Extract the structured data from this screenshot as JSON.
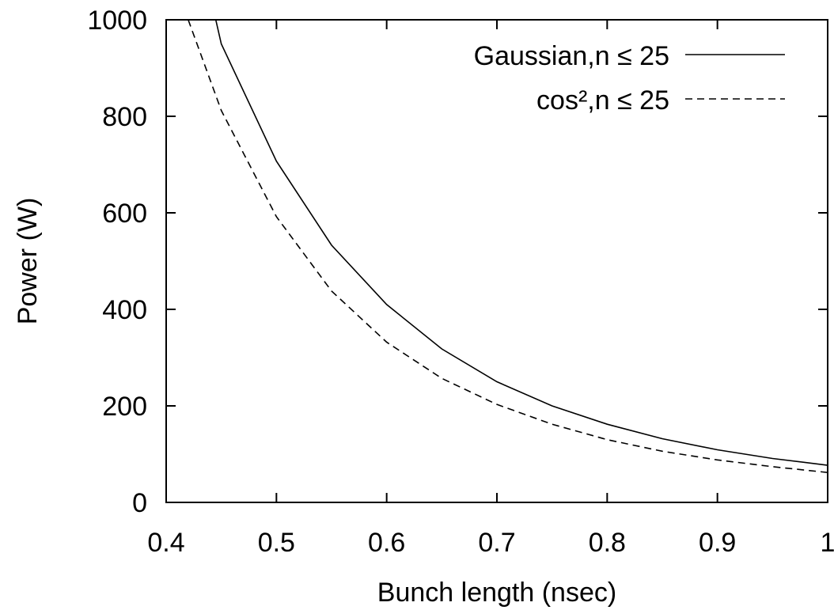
{
  "chart_data": {
    "type": "line",
    "title": "",
    "xlabel": "Bunch length (nsec)",
    "ylabel": "Power (W)",
    "xlim": [
      0.4,
      1.0
    ],
    "ylim": [
      0,
      1000
    ],
    "xticks": [
      "0.4",
      "0.5",
      "0.6",
      "0.7",
      "0.8",
      "0.9",
      "1"
    ],
    "yticks": [
      "0",
      "200",
      "400",
      "600",
      "800",
      "1000"
    ],
    "grid": false,
    "legend_position": "top-right",
    "series": [
      {
        "name": "Gaussian,n ≤ 25",
        "dash": "solid",
        "color": "#000000",
        "x": [
          0.44,
          0.45,
          0.5,
          0.55,
          0.6,
          0.65,
          0.7,
          0.75,
          0.8,
          0.85,
          0.9,
          0.95,
          1.0
        ],
        "y": [
          1050,
          950,
          707,
          533,
          410,
          318,
          250,
          200,
          162,
          132,
          109,
          91,
          77
        ]
      },
      {
        "name": "cos²,n ≤ 25",
        "dash": "dashed",
        "color": "#000000",
        "x": [
          0.42,
          0.45,
          0.5,
          0.55,
          0.6,
          0.65,
          0.7,
          0.75,
          0.8,
          0.85,
          0.9,
          0.95,
          1.0
        ],
        "y": [
          1000,
          812,
          592,
          438,
          332,
          257,
          203,
          162,
          130,
          106,
          88,
          74,
          62
        ]
      }
    ]
  }
}
